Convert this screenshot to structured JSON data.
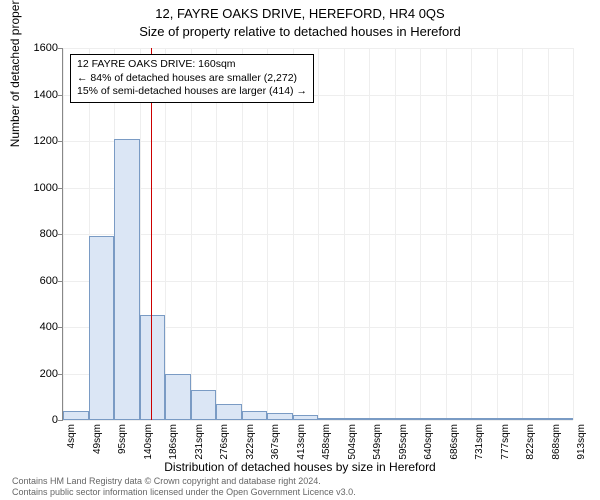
{
  "title_line1": "12, FAYRE OAKS DRIVE, HEREFORD, HR4 0QS",
  "title_line2": "Size of property relative to detached houses in Hereford",
  "ylabel": "Number of detached properties",
  "xlabel": "Distribution of detached houses by size in Hereford",
  "chart": {
    "type": "histogram",
    "ylim": [
      0,
      1600
    ],
    "yticks": [
      0,
      200,
      400,
      600,
      800,
      1000,
      1200,
      1400,
      1600
    ],
    "xticks": [
      "4sqm",
      "49sqm",
      "95sqm",
      "140sqm",
      "186sqm",
      "231sqm",
      "276sqm",
      "322sqm",
      "367sqm",
      "413sqm",
      "458sqm",
      "504sqm",
      "549sqm",
      "595sqm",
      "640sqm",
      "686sqm",
      "731sqm",
      "777sqm",
      "822sqm",
      "868sqm",
      "913sqm"
    ],
    "bars": [
      40,
      790,
      1210,
      450,
      200,
      130,
      70,
      40,
      30,
      20,
      10,
      5,
      3,
      2,
      2,
      1,
      1,
      1,
      1,
      1
    ],
    "bar_fill": "#dbe6f5",
    "bar_stroke": "#7a9bc4",
    "grid_color": "#eeeeee",
    "marker_color": "#cc0000",
    "marker_bin_index": 3,
    "background": "#ffffff"
  },
  "annotation": {
    "line1": "12 FAYRE OAKS DRIVE: 160sqm",
    "line2": "← 84% of detached houses are smaller (2,272)",
    "line3": "15% of semi-detached houses are larger (414) →"
  },
  "footer": {
    "line1": "Contains HM Land Registry data © Crown copyright and database right 2024.",
    "line2": "Contains public sector information licensed under the Open Government Licence v3.0."
  }
}
